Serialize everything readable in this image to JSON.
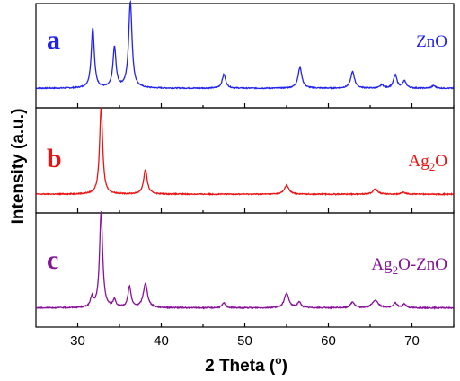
{
  "chart_data": {
    "type": "line",
    "xlabel_prefix": "2 Theta (",
    "xlabel_sup": "o",
    "xlabel_suffix": ")",
    "ylabel": "Intensity (a.u.)",
    "xlim": [
      25,
      75
    ],
    "xticks": [
      "30",
      "40",
      "50",
      "60",
      "70"
    ],
    "grid": false,
    "panels": [
      {
        "letter": "a",
        "label_parts": [
          "ZnO"
        ],
        "color": "#2222ee",
        "baseline": 0.06,
        "peaks": [
          {
            "x": 31.8,
            "h": 0.7,
            "w": 0.22
          },
          {
            "x": 34.4,
            "h": 0.47,
            "w": 0.22
          },
          {
            "x": 36.3,
            "h": 1.0,
            "w": 0.24
          },
          {
            "x": 47.5,
            "h": 0.16,
            "w": 0.25
          },
          {
            "x": 56.6,
            "h": 0.24,
            "w": 0.28
          },
          {
            "x": 62.9,
            "h": 0.19,
            "w": 0.28
          },
          {
            "x": 66.4,
            "h": 0.04,
            "w": 0.22
          },
          {
            "x": 68.0,
            "h": 0.15,
            "w": 0.26
          },
          {
            "x": 69.1,
            "h": 0.08,
            "w": 0.26
          },
          {
            "x": 72.6,
            "h": 0.03,
            "w": 0.25
          }
        ]
      },
      {
        "letter": "b",
        "label_parts": [
          "Ag",
          "2",
          "O"
        ],
        "color": "#ee1111",
        "baseline": 0.05,
        "peaks": [
          {
            "x": 32.8,
            "h": 1.0,
            "w": 0.22
          },
          {
            "x": 38.1,
            "h": 0.28,
            "w": 0.26
          },
          {
            "x": 55.0,
            "h": 0.1,
            "w": 0.33
          },
          {
            "x": 65.6,
            "h": 0.06,
            "w": 0.35
          },
          {
            "x": 69.0,
            "h": 0.02,
            "w": 0.3
          }
        ]
      },
      {
        "letter": "c",
        "label_parts": [
          "Ag",
          "2",
          "O-ZnO"
        ],
        "color": "#881199",
        "baseline": 0.05,
        "peaks": [
          {
            "x": 31.7,
            "h": 0.1,
            "w": 0.2
          },
          {
            "x": 32.8,
            "h": 1.0,
            "w": 0.22
          },
          {
            "x": 34.4,
            "h": 0.08,
            "w": 0.2
          },
          {
            "x": 36.2,
            "h": 0.22,
            "w": 0.22
          },
          {
            "x": 38.1,
            "h": 0.25,
            "w": 0.3
          },
          {
            "x": 47.5,
            "h": 0.05,
            "w": 0.25
          },
          {
            "x": 55.0,
            "h": 0.15,
            "w": 0.32
          },
          {
            "x": 56.5,
            "h": 0.06,
            "w": 0.25
          },
          {
            "x": 62.9,
            "h": 0.06,
            "w": 0.28
          },
          {
            "x": 65.6,
            "h": 0.08,
            "w": 0.4
          },
          {
            "x": 68.0,
            "h": 0.05,
            "w": 0.26
          },
          {
            "x": 69.1,
            "h": 0.04,
            "w": 0.25
          }
        ]
      }
    ]
  }
}
